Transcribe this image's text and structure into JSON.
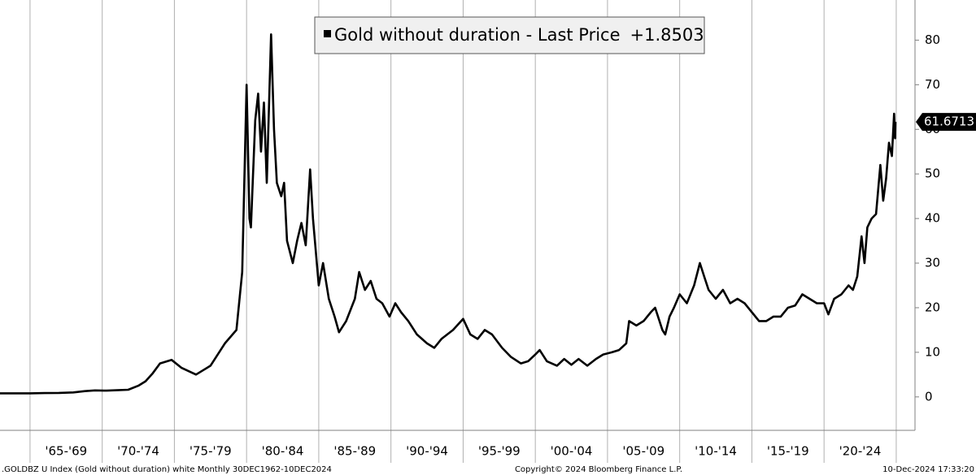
{
  "chart_data": {
    "type": "line",
    "series": [
      {
        "name": "Gold without duration - Last Price",
        "color": "#000000",
        "x": [
          1962.92,
          1964.0,
          1965.0,
          1966.0,
          1967.0,
          1968.0,
          1968.8,
          1969.5,
          1970.3,
          1971.0,
          1971.8,
          1972.5,
          1973.0,
          1973.5,
          1974.0,
          1974.8,
          1975.5,
          1976.5,
          1977.5,
          1978.5,
          1979.3,
          1979.7,
          1980.0,
          1980.2,
          1980.3,
          1980.6,
          1980.8,
          1981.0,
          1981.2,
          1981.4,
          1981.7,
          1981.9,
          1982.1,
          1982.4,
          1982.6,
          1982.8,
          1983.2,
          1983.5,
          1983.8,
          1984.1,
          1984.4,
          1984.6,
          1985.0,
          1985.3,
          1985.7,
          1986.1,
          1986.4,
          1986.9,
          1987.5,
          1987.8,
          1988.2,
          1988.6,
          1989.0,
          1989.4,
          1989.9,
          1990.3,
          1990.7,
          1991.2,
          1991.8,
          1992.5,
          1993.0,
          1993.5,
          1994.3,
          1995.0,
          1995.5,
          1996.0,
          1996.5,
          1997.0,
          1997.7,
          1998.3,
          1999.0,
          1999.5,
          2000.0,
          2000.3,
          2000.8,
          2001.5,
          2002.0,
          2002.5,
          2003.0,
          2003.6,
          2004.2,
          2004.7,
          2005.3,
          2005.8,
          2006.3,
          2006.5,
          2007.0,
          2007.5,
          2008.0,
          2008.3,
          2008.8,
          2009.0,
          2009.3,
          2009.6,
          2010.0,
          2010.5,
          2011.0,
          2011.4,
          2011.7,
          2012.0,
          2012.5,
          2013.0,
          2013.5,
          2014.0,
          2014.5,
          2015.0,
          2015.5,
          2016.0,
          2016.5,
          2017.0,
          2017.5,
          2018.0,
          2018.5,
          2019.0,
          2019.5,
          2020.0,
          2020.3,
          2020.7,
          2021.2,
          2021.7,
          2022.0,
          2022.3,
          2022.6,
          2022.8,
          2023.0,
          2023.3,
          2023.6,
          2023.9,
          2024.1,
          2024.3,
          2024.5,
          2024.7,
          2024.85,
          2024.92,
          2024.95
        ],
        "values": [
          0.8,
          0.8,
          0.8,
          0.85,
          0.9,
          1.0,
          1.3,
          1.45,
          1.4,
          1.5,
          1.6,
          2.5,
          3.5,
          5.3,
          7.5,
          8.3,
          6.5,
          5.0,
          7.0,
          12,
          15,
          28,
          70,
          40,
          38,
          62,
          68,
          55,
          66,
          48,
          81.3,
          60,
          48,
          45,
          48,
          35,
          30,
          35,
          39,
          34,
          51,
          40,
          25,
          30,
          22,
          18,
          14.5,
          17,
          22,
          28,
          24,
          26,
          22,
          21,
          18,
          21,
          19,
          17,
          14,
          12,
          11,
          13,
          15,
          17.5,
          14,
          13,
          15,
          14,
          11,
          9,
          7.5,
          8,
          9.5,
          10.5,
          8,
          7,
          8.5,
          7.2,
          8.5,
          7,
          8.5,
          9.5,
          10,
          10.5,
          12,
          17,
          16,
          17,
          19,
          20,
          15,
          14,
          18,
          20,
          23,
          21,
          25,
          30,
          27,
          24,
          22,
          24,
          21,
          22,
          21,
          19,
          17,
          17,
          18,
          18,
          20,
          20.5,
          23,
          22,
          21,
          21,
          18.5,
          22,
          23,
          25,
          24,
          27,
          36,
          30,
          38,
          40,
          41,
          52,
          44,
          49,
          57,
          54,
          63.5,
          58,
          61.6713
        ]
      }
    ],
    "legend_value": "+1.8503",
    "xlim": [
      1962.92,
      2026.3
    ],
    "xticks": [
      1965,
      1970,
      1975,
      1980,
      1985,
      1990,
      1995,
      2000,
      2005,
      2010,
      2015,
      2020,
      2025
    ],
    "x_band_labels": [
      "'65-'69",
      "'70-'74",
      "'75-'79",
      "'80-'84",
      "'85-'89",
      "'90-'94",
      "'95-'99",
      "'00-'04",
      "'05-'09",
      "'10-'14",
      "'15-'19",
      "'20-'24"
    ],
    "ylim": [
      -7.5,
      89
    ],
    "yticks": [
      0,
      10,
      20,
      30,
      40,
      50,
      60,
      70,
      80
    ],
    "y_axis_side": "right",
    "grid": "x",
    "footer_left": ".GOLDBZ U Index (Gold without duration) white  Monthly 30DEC1962-10DEC2024",
    "footer_center": "Copyright© 2024 Bloomberg Finance L.P.",
    "footer_right": "10-Dec-2024 17:33:20"
  }
}
